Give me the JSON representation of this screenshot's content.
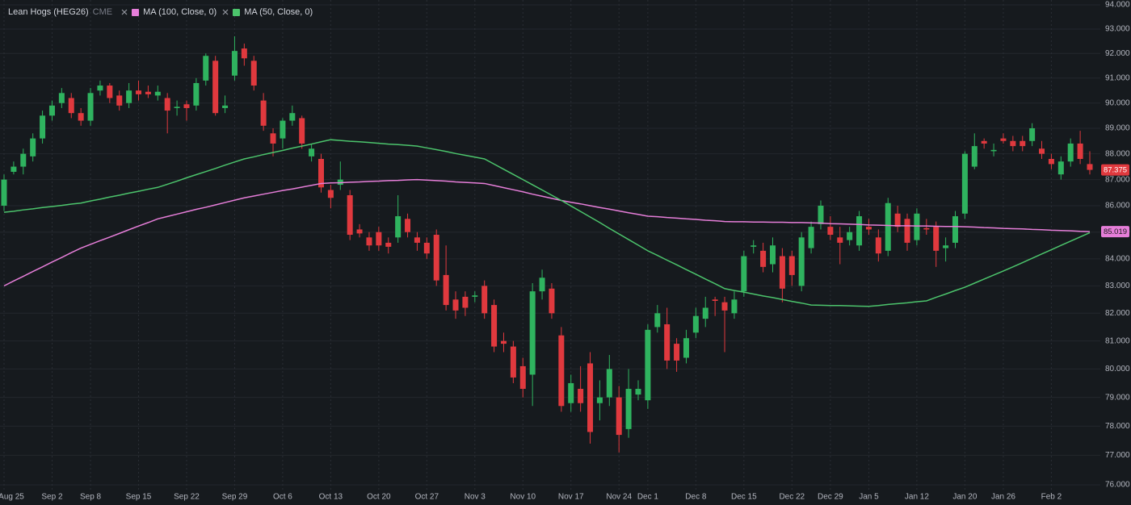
{
  "chart_data": {
    "type": "candlestick",
    "title": "Lean Hogs (HEG26)",
    "exchange": "CME",
    "categories": [
      "Aug 25",
      null,
      null,
      null,
      null,
      "Sep 2",
      null,
      null,
      null,
      "Sep 8",
      null,
      null,
      null,
      null,
      "Sep 15",
      null,
      null,
      null,
      null,
      "Sep 22",
      null,
      null,
      null,
      null,
      "Sep 29",
      null,
      null,
      null,
      null,
      "Oct 6",
      null,
      null,
      null,
      null,
      "Oct 13",
      null,
      null,
      null,
      null,
      "Oct 20",
      null,
      null,
      null,
      null,
      "Oct 27",
      null,
      null,
      null,
      null,
      "Nov 3",
      null,
      null,
      null,
      null,
      "Nov 10",
      null,
      null,
      null,
      null,
      "Nov 17",
      null,
      null,
      null,
      null,
      "Nov 24",
      null,
      null,
      "Dec 1",
      null,
      null,
      null,
      null,
      "Dec 8",
      null,
      null,
      null,
      null,
      "Dec 15",
      null,
      null,
      null,
      null,
      "Dec 22",
      null,
      null,
      null,
      "Dec 29",
      null,
      null,
      null,
      "Jan 5",
      null,
      null,
      null,
      null,
      "Jan 12",
      null,
      null,
      null,
      null,
      "Jan 20",
      null,
      null,
      null,
      "Jan 26",
      null,
      null,
      null,
      null,
      "Feb 2",
      null,
      null,
      null,
      null
    ],
    "open": [
      86.0,
      87.3,
      87.5,
      87.9,
      88.6,
      89.5,
      90.0,
      90.2,
      89.6,
      89.3,
      90.5,
      90.7,
      90.3,
      90.0,
      90.5,
      90.45,
      90.3,
      90.2,
      89.8,
      89.95,
      89.9,
      90.9,
      91.7,
      89.8,
      91.1,
      92.2,
      91.7,
      90.1,
      88.8,
      88.6,
      89.3,
      89.4,
      87.9,
      87.8,
      86.6,
      86.8,
      86.4,
      85.1,
      84.8,
      85.0,
      84.6,
      84.8,
      85.5,
      84.8,
      84.6,
      84.9,
      83.4,
      82.5,
      82.6,
      82.6,
      83.0,
      82.3,
      81.0,
      80.8,
      80.1,
      79.8,
      82.8,
      82.9,
      81.2,
      78.8,
      79.3,
      80.2,
      78.8,
      79.0,
      79.0,
      77.9,
      79.1,
      78.9,
      81.5,
      81.6,
      80.9,
      80.4,
      81.3,
      81.8,
      82.5,
      82.4,
      82.0,
      82.8,
      84.45,
      84.3,
      83.8,
      84.1,
      84.1,
      83.0,
      84.4,
      85.3,
      85.2,
      84.8,
      84.7,
      84.5,
      85.2,
      84.8,
      84.3,
      85.7,
      85.5,
      84.7,
      85.15,
      85.2,
      84.4,
      84.6,
      85.7,
      87.5,
      88.5,
      88.1,
      88.6,
      88.5,
      88.5,
      88.5,
      88.2,
      87.8,
      87.2,
      87.7,
      88.4,
      87.6
    ],
    "high": [
      87.2,
      87.7,
      88.2,
      88.8,
      89.7,
      90.1,
      90.6,
      90.4,
      89.8,
      90.6,
      90.9,
      90.8,
      90.5,
      90.8,
      90.9,
      90.7,
      90.7,
      90.4,
      90.1,
      90.1,
      91.0,
      92.0,
      91.9,
      90.3,
      92.7,
      92.4,
      91.9,
      90.4,
      89.0,
      89.4,
      89.9,
      89.5,
      88.4,
      88.0,
      86.8,
      87.7,
      86.6,
      85.3,
      85.0,
      85.2,
      84.8,
      86.4,
      85.7,
      85.0,
      84.8,
      85.1,
      84.5,
      82.8,
      82.8,
      82.8,
      83.2,
      82.5,
      81.3,
      81.0,
      80.4,
      83.1,
      83.6,
      83.1,
      81.5,
      79.8,
      80.1,
      80.6,
      79.6,
      80.5,
      79.4,
      80.0,
      79.6,
      81.6,
      82.3,
      82.2,
      81.1,
      81.4,
      82.2,
      82.6,
      82.6,
      82.6,
      82.8,
      84.3,
      84.7,
      84.6,
      84.8,
      84.4,
      84.3,
      85.0,
      85.4,
      86.2,
      85.6,
      85.2,
      85.2,
      85.8,
      85.5,
      85.1,
      86.3,
      86.0,
      85.7,
      85.9,
      85.5,
      85.4,
      84.8,
      85.8,
      88.1,
      88.8,
      88.6,
      88.4,
      88.8,
      88.7,
      88.7,
      89.2,
      88.5,
      88.0,
      87.9,
      88.6,
      88.9,
      88.1
    ],
    "low": [
      85.8,
      87.2,
      87.2,
      87.7,
      88.4,
      89.3,
      89.8,
      89.4,
      89.1,
      89.1,
      90.3,
      90.0,
      89.7,
      89.8,
      90.1,
      90.2,
      90.1,
      88.8,
      89.5,
      89.3,
      89.7,
      90.7,
      89.5,
      89.6,
      90.9,
      91.5,
      90.5,
      88.9,
      87.9,
      88.2,
      89.1,
      88.2,
      87.7,
      86.5,
      85.9,
      86.6,
      84.7,
      84.8,
      84.3,
      84.3,
      84.2,
      84.6,
      84.8,
      84.3,
      84.0,
      83.0,
      82.1,
      81.8,
      81.9,
      82.4,
      81.8,
      80.6,
      80.6,
      79.5,
      79.0,
      78.7,
      82.5,
      81.8,
      78.5,
      78.5,
      78.5,
      77.4,
      78.2,
      78.7,
      77.1,
      77.6,
      78.9,
      78.6,
      81.3,
      80.0,
      79.9,
      80.2,
      81.1,
      81.5,
      81.9,
      80.6,
      81.8,
      82.6,
      84.2,
      83.5,
      83.5,
      82.4,
      83.0,
      82.8,
      84.2,
      85.1,
      84.7,
      83.8,
      84.5,
      84.3,
      84.9,
      83.9,
      84.1,
      85.0,
      84.3,
      84.5,
      84.9,
      83.7,
      83.9,
      84.4,
      85.5,
      87.4,
      88.2,
      87.9,
      88.4,
      88.1,
      88.1,
      88.3,
      87.8,
      87.4,
      87.0,
      87.5,
      87.6,
      87.2
    ],
    "close": [
      87.0,
      87.5,
      88.0,
      88.6,
      89.5,
      89.9,
      90.4,
      89.6,
      89.3,
      90.4,
      90.7,
      90.2,
      89.9,
      90.5,
      90.35,
      90.35,
      90.45,
      89.7,
      89.85,
      89.8,
      90.8,
      91.9,
      89.6,
      89.9,
      92.1,
      91.8,
      90.7,
      89.1,
      88.4,
      89.3,
      89.6,
      88.4,
      88.2,
      86.7,
      86.3,
      87.0,
      84.9,
      84.95,
      84.5,
      84.5,
      84.45,
      85.6,
      85.0,
      84.6,
      84.2,
      83.2,
      82.3,
      82.1,
      82.2,
      82.65,
      82.0,
      80.8,
      80.9,
      79.7,
      79.3,
      82.8,
      83.3,
      82.0,
      78.7,
      79.5,
      78.8,
      77.8,
      79.0,
      80.0,
      77.7,
      79.3,
      79.3,
      81.4,
      82.0,
      80.3,
      80.3,
      81.1,
      81.9,
      82.2,
      82.45,
      82.1,
      82.5,
      84.1,
      84.5,
      83.7,
      84.5,
      82.9,
      83.4,
      84.8,
      85.2,
      86.0,
      84.9,
      84.6,
      85.0,
      85.6,
      85.1,
      84.2,
      86.1,
      85.2,
      84.6,
      85.7,
      85.1,
      84.3,
      84.5,
      85.6,
      88.0,
      88.3,
      88.4,
      88.15,
      88.5,
      88.3,
      88.3,
      89.0,
      88.0,
      87.6,
      87.7,
      88.4,
      87.8,
      87.375
    ],
    "up_color": "#2fb35f",
    "down_color": "#e0393e",
    "series": [
      {
        "name": "MA (100, Close, 0)",
        "color": "#e67ed9",
        "values": [
          83.0,
          83.18,
          83.35,
          83.53,
          83.7,
          83.88,
          84.05,
          84.23,
          84.4,
          84.54,
          84.68,
          84.81,
          84.95,
          85.09,
          85.23,
          85.36,
          85.5,
          85.59,
          85.68,
          85.77,
          85.86,
          85.94,
          86.03,
          86.12,
          86.21,
          86.3,
          86.37,
          86.44,
          86.51,
          86.58,
          86.64,
          86.71,
          86.78,
          86.85,
          86.87,
          86.88,
          86.9,
          86.91,
          86.93,
          86.94,
          86.96,
          86.97,
          86.99,
          87.0,
          86.98,
          86.96,
          86.94,
          86.91,
          86.89,
          86.87,
          86.85,
          86.77,
          86.69,
          86.61,
          86.53,
          86.44,
          86.36,
          86.28,
          86.2,
          86.13,
          86.07,
          86.0,
          85.93,
          85.87,
          85.8,
          85.73,
          85.67,
          85.6,
          85.58,
          85.55,
          85.53,
          85.5,
          85.48,
          85.45,
          85.43,
          85.4,
          85.39,
          85.39,
          85.38,
          85.38,
          85.37,
          85.37,
          85.36,
          85.36,
          85.35,
          85.34,
          85.32,
          85.31,
          85.3,
          85.29,
          85.27,
          85.26,
          85.25,
          85.24,
          85.24,
          85.23,
          85.23,
          85.22,
          85.21,
          85.21,
          85.2,
          85.19,
          85.17,
          85.16,
          85.14,
          85.13,
          85.12,
          85.1,
          85.09,
          85.07,
          85.06,
          85.05,
          85.03,
          85.019
        ]
      },
      {
        "name": "MA (50, Close, 0)",
        "color": "#4cc46c",
        "values": [
          85.75,
          85.79,
          85.84,
          85.88,
          85.93,
          85.97,
          86.01,
          86.06,
          86.1,
          86.18,
          86.25,
          86.33,
          86.4,
          86.48,
          86.55,
          86.63,
          86.7,
          86.82,
          86.94,
          87.07,
          87.19,
          87.31,
          87.43,
          87.56,
          87.68,
          87.8,
          87.88,
          87.97,
          88.05,
          88.13,
          88.22,
          88.3,
          88.38,
          88.47,
          88.55,
          88.52,
          88.49,
          88.47,
          88.44,
          88.41,
          88.38,
          88.36,
          88.33,
          88.3,
          88.23,
          88.16,
          88.09,
          88.01,
          87.94,
          87.87,
          87.8,
          87.6,
          87.4,
          87.2,
          87.0,
          86.8,
          86.6,
          86.4,
          86.2,
          85.99,
          85.78,
          85.57,
          85.36,
          85.14,
          84.93,
          84.72,
          84.51,
          84.3,
          84.13,
          83.95,
          83.78,
          83.6,
          83.43,
          83.25,
          83.08,
          82.9,
          82.83,
          82.77,
          82.7,
          82.63,
          82.57,
          82.5,
          82.43,
          82.37,
          82.3,
          82.29,
          82.28,
          82.28,
          82.27,
          82.26,
          82.25,
          82.28,
          82.32,
          82.35,
          82.38,
          82.42,
          82.45,
          82.58,
          82.7,
          82.83,
          82.95,
          83.1,
          83.25,
          83.4,
          83.55,
          83.7,
          83.86,
          84.02,
          84.18,
          84.34,
          84.5,
          84.66,
          84.82,
          84.98
        ]
      }
    ],
    "ylim": [
      76,
      94
    ],
    "log": true,
    "yticks": [
      {
        "value": 76,
        "label": "76.000"
      },
      {
        "value": 77,
        "label": "77.000"
      },
      {
        "value": 78,
        "label": "78.000"
      },
      {
        "value": 79,
        "label": "79.000"
      },
      {
        "value": 80,
        "label": "80.000"
      },
      {
        "value": 81,
        "label": "81.000"
      },
      {
        "value": 82,
        "label": "82.000"
      },
      {
        "value": 83,
        "label": "83.000"
      },
      {
        "value": 84,
        "label": "84.000"
      },
      {
        "value": 85,
        "label": "85.000"
      },
      {
        "value": 86,
        "label": "86.000"
      },
      {
        "value": 87,
        "label": "87.000"
      },
      {
        "value": 88,
        "label": "88.000"
      },
      {
        "value": 89,
        "label": "89.000"
      },
      {
        "value": 90,
        "label": "90.000"
      },
      {
        "value": 91,
        "label": "91.000"
      },
      {
        "value": 92,
        "label": "92.000"
      },
      {
        "value": 93,
        "label": "93.000"
      },
      {
        "value": 94,
        "label": "94.000"
      }
    ],
    "grid": true
  }
}
